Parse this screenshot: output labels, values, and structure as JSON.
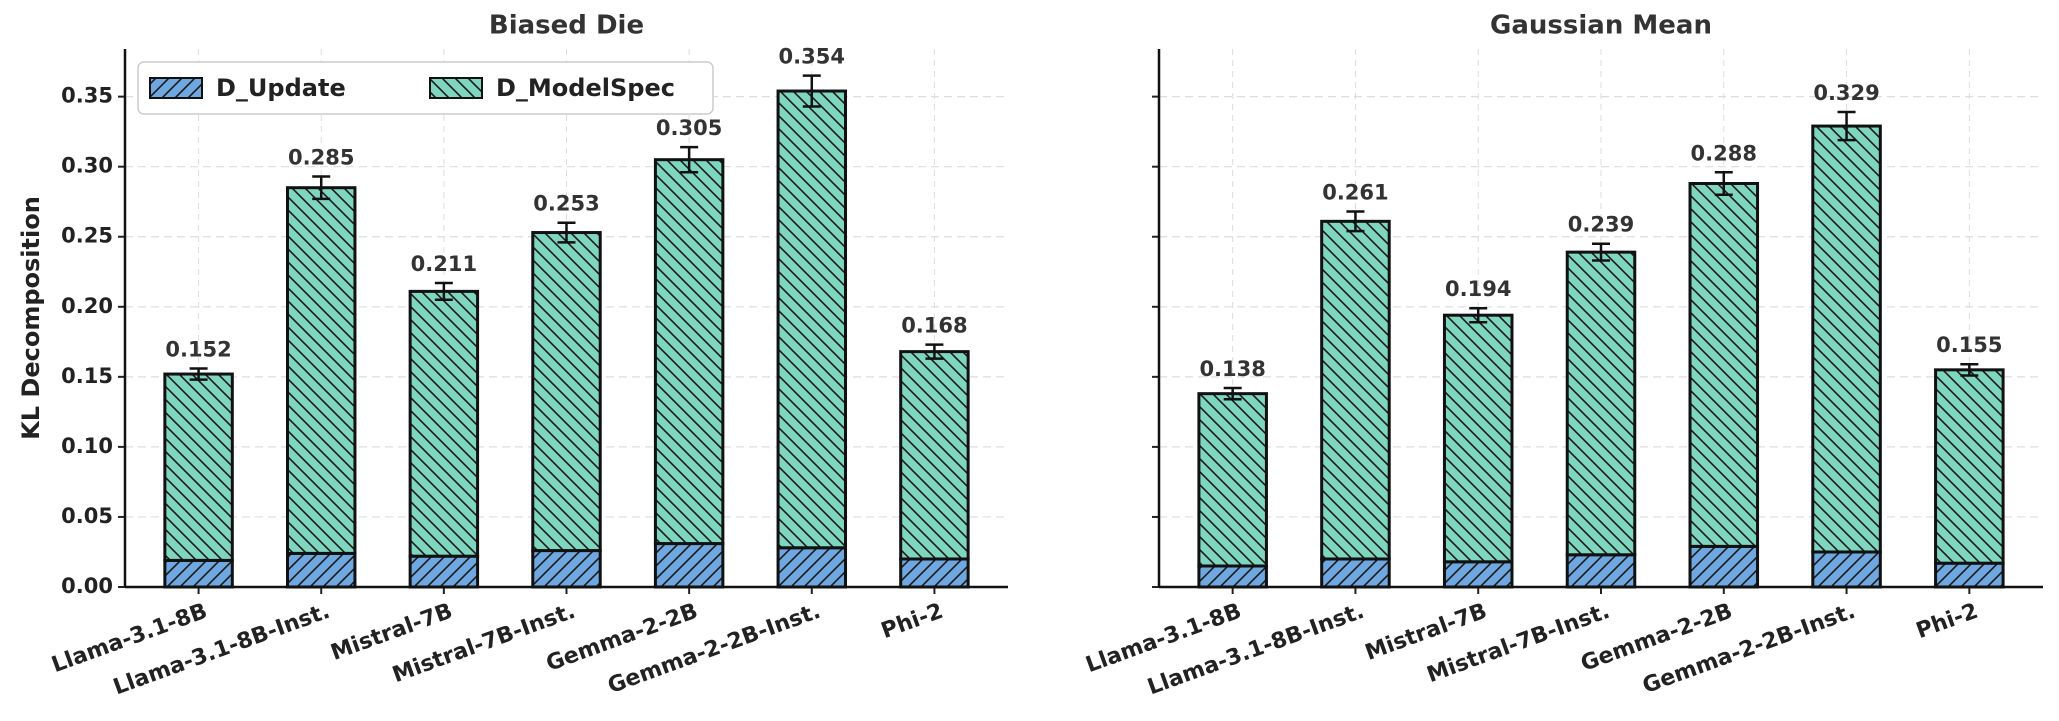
{
  "chart_data": [
    {
      "type": "stacked_bar",
      "title": "Biased Die",
      "ylabel": "KL Decomposition",
      "categories": [
        "Llama-3.1-8B",
        "Llama-3.1-8B-Inst.",
        "Mistral-7B",
        "Mistral-7B-Inst.",
        "Gemma-2-2B",
        "Gemma-2-2B-Inst.",
        "Phi-2"
      ],
      "series": [
        {
          "name": "D_Update",
          "color": "#6fa8e0",
          "hatch": "/",
          "values": [
            0.019,
            0.024,
            0.022,
            0.026,
            0.031,
            0.028,
            0.02
          ]
        },
        {
          "name": "D_ModelSpec",
          "color": "#7fd6bf",
          "hatch": "\\",
          "values": [
            0.133,
            0.261,
            0.189,
            0.227,
            0.274,
            0.326,
            0.148
          ]
        }
      ],
      "totals": [
        0.152,
        0.285,
        0.211,
        0.253,
        0.305,
        0.354,
        0.168
      ],
      "errors": [
        0.004,
        0.008,
        0.006,
        0.007,
        0.009,
        0.011,
        0.005
      ],
      "ylim": [
        0,
        0.384
      ],
      "yticks": [
        {
          "value": 0,
          "label": "0.00"
        },
        {
          "value": 0.05,
          "label": "0.05"
        },
        {
          "value": 0.1,
          "label": "0.10"
        },
        {
          "value": 0.15,
          "label": "0.15"
        },
        {
          "value": 0.2,
          "label": "0.20"
        },
        {
          "value": 0.25,
          "label": "0.25"
        },
        {
          "value": 0.3,
          "label": "0.30"
        },
        {
          "value": 0.35,
          "label": "0.35"
        }
      ],
      "grid": true,
      "legend": "upper left"
    },
    {
      "type": "stacked_bar",
      "title": "Gaussian Mean",
      "categories": [
        "Llama-3.1-8B",
        "Llama-3.1-8B-Inst.",
        "Mistral-7B",
        "Mistral-7B-Inst.",
        "Gemma-2-2B",
        "Gemma-2-2B-Inst.",
        "Phi-2"
      ],
      "series": [
        {
          "color": "#6fa8e0",
          "hatch": "/",
          "values": [
            0.015,
            0.02,
            0.018,
            0.023,
            0.029,
            0.025,
            0.017
          ]
        },
        {
          "color": "#7fd6bf",
          "hatch": "\\",
          "values": [
            0.123,
            0.241,
            0.176,
            0.216,
            0.259,
            0.304,
            0.138
          ]
        }
      ],
      "totals": [
        0.138,
        0.261,
        0.194,
        0.239,
        0.288,
        0.329,
        0.155
      ],
      "errors": [
        0.004,
        0.007,
        0.005,
        0.006,
        0.008,
        0.01,
        0.004
      ],
      "ylim": [
        0,
        0.384
      ],
      "yticks": [
        0,
        0.05,
        0.1,
        0.15,
        0.2,
        0.25,
        0.3,
        0.35
      ],
      "grid": true
    }
  ]
}
